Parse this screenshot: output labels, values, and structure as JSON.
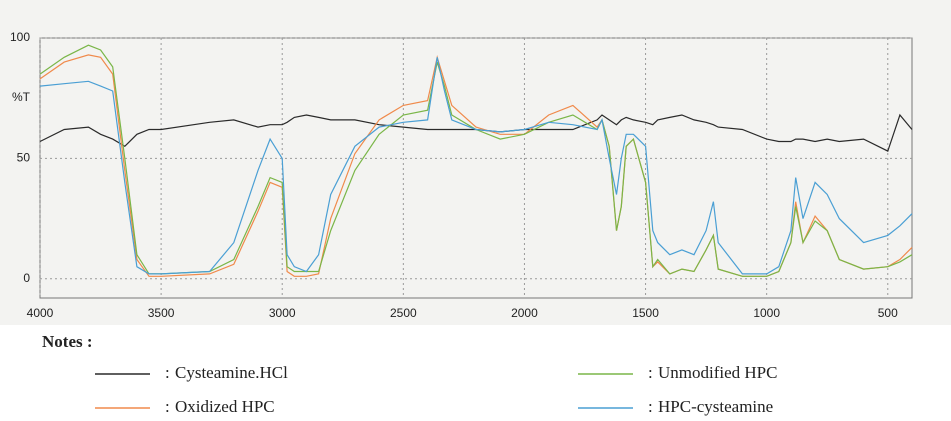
{
  "chart_data": {
    "type": "line",
    "y_label": "%T",
    "legend_title": "Notes :",
    "legend_marker": ":",
    "x": [
      4000,
      3900,
      3800,
      3750,
      3700,
      3650,
      3600,
      3550,
      3500,
      3300,
      3200,
      3100,
      3050,
      3000,
      2980,
      2950,
      2900,
      2850,
      2800,
      2700,
      2600,
      2500,
      2400,
      2360,
      2330,
      2300,
      2200,
      2100,
      2000,
      1900,
      1800,
      1700,
      1680,
      1650,
      1620,
      1600,
      1580,
      1550,
      1500,
      1470,
      1450,
      1400,
      1350,
      1300,
      1250,
      1220,
      1200,
      1100,
      1000,
      950,
      900,
      880,
      850,
      800,
      750,
      700,
      600,
      500,
      450,
      400
    ],
    "series": [
      {
        "name": "Cysteamine.HCl",
        "color": "#2a2a2a",
        "values": [
          57,
          62,
          63,
          60,
          58,
          55,
          60,
          62,
          62,
          65,
          66,
          63,
          64,
          64,
          65,
          67,
          68,
          67,
          66,
          66,
          64,
          63,
          62,
          62,
          62,
          62,
          62,
          61,
          62,
          62,
          62,
          66,
          68,
          66,
          64,
          66,
          67,
          66,
          65,
          64,
          66,
          67,
          68,
          66,
          65,
          64,
          63,
          62,
          58,
          57,
          57,
          58,
          58,
          57,
          58,
          57,
          58,
          53,
          68,
          62
        ]
      },
      {
        "name": "Oxidized HPC",
        "color": "#f08a4b",
        "values": [
          83,
          90,
          93,
          92,
          85,
          45,
          8,
          1,
          1,
          2,
          6,
          28,
          40,
          38,
          3,
          1,
          1,
          2,
          25,
          52,
          66,
          72,
          74,
          92,
          82,
          72,
          63,
          60,
          60,
          68,
          72,
          63,
          66,
          55,
          20,
          30,
          55,
          58,
          40,
          5,
          7,
          2,
          4,
          3,
          12,
          18,
          4,
          1,
          1,
          3,
          15,
          32,
          15,
          26,
          20,
          8,
          4,
          5,
          8,
          13
        ]
      },
      {
        "name": "Unmodified HPC",
        "color": "#7ab648",
        "values": [
          85,
          92,
          97,
          95,
          88,
          50,
          10,
          2,
          2,
          3,
          8,
          30,
          42,
          40,
          5,
          3,
          3,
          3,
          20,
          45,
          60,
          68,
          70,
          90,
          80,
          68,
          62,
          58,
          60,
          65,
          68,
          62,
          66,
          55,
          20,
          30,
          55,
          58,
          40,
          5,
          8,
          2,
          4,
          3,
          12,
          18,
          4,
          1,
          1,
          3,
          15,
          30,
          15,
          24,
          20,
          8,
          4,
          5,
          7,
          10
        ]
      },
      {
        "name": "HPC-cysteamine",
        "color": "#4a9fd4",
        "values": [
          80,
          81,
          82,
          80,
          78,
          40,
          5,
          2,
          2,
          3,
          15,
          45,
          58,
          50,
          10,
          5,
          3,
          10,
          35,
          55,
          63,
          65,
          66,
          92,
          78,
          66,
          62,
          61,
          62,
          65,
          64,
          62,
          66,
          50,
          35,
          50,
          60,
          60,
          55,
          20,
          15,
          10,
          12,
          10,
          20,
          32,
          15,
          2,
          2,
          5,
          20,
          42,
          25,
          40,
          35,
          25,
          15,
          18,
          22,
          27
        ]
      }
    ],
    "xlim": [
      4000,
      400
    ],
    "xticks": [
      4000,
      3500,
      3000,
      2500,
      2000,
      1500,
      1000,
      500
    ],
    "ylim": [
      -8,
      100
    ],
    "yticks": [
      0,
      50,
      100
    ],
    "grid": true
  }
}
